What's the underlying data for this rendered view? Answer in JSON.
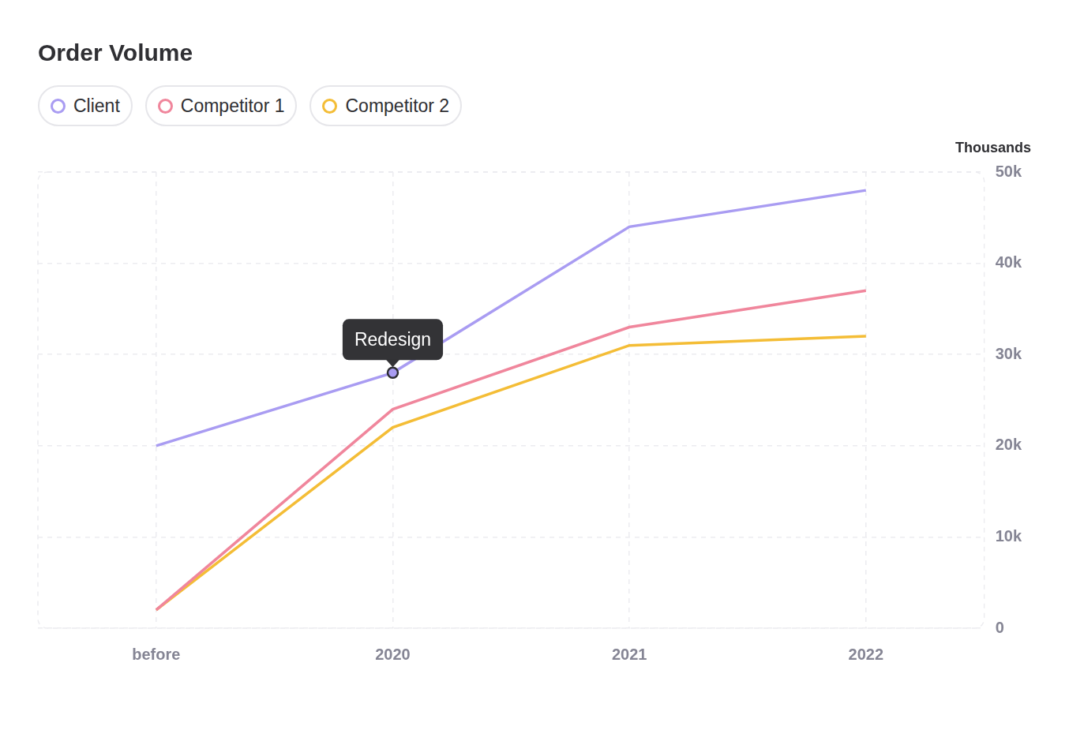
{
  "chart_data": {
    "type": "line",
    "title": "Order Volume",
    "y_label": "Thousands",
    "categories": [
      "before",
      "2020",
      "2021",
      "2022"
    ],
    "series": [
      {
        "name": "Client",
        "color": "#a99cf2",
        "values": [
          20000,
          28000,
          44000,
          48000
        ]
      },
      {
        "name": "Competitor 1",
        "color": "#f0869c",
        "values": [
          2000,
          24000,
          33000,
          37000
        ]
      },
      {
        "name": "Competitor 2",
        "color": "#f4bd36",
        "values": [
          2000,
          22000,
          31000,
          32000
        ]
      }
    ],
    "ylim": [
      0,
      50000
    ],
    "yticks": [
      0,
      {
        "value": 10000,
        "label": "10k"
      },
      {
        "value": 20000,
        "label": "20k"
      },
      {
        "value": 30000,
        "label": "30k"
      },
      {
        "value": 40000,
        "label": "40k"
      },
      {
        "value": 50000,
        "label": "50k"
      }
    ],
    "grid": true,
    "legend": "top-left",
    "annotations": [
      {
        "text": "Redesign",
        "x": "2020",
        "series": "Client"
      }
    ]
  }
}
